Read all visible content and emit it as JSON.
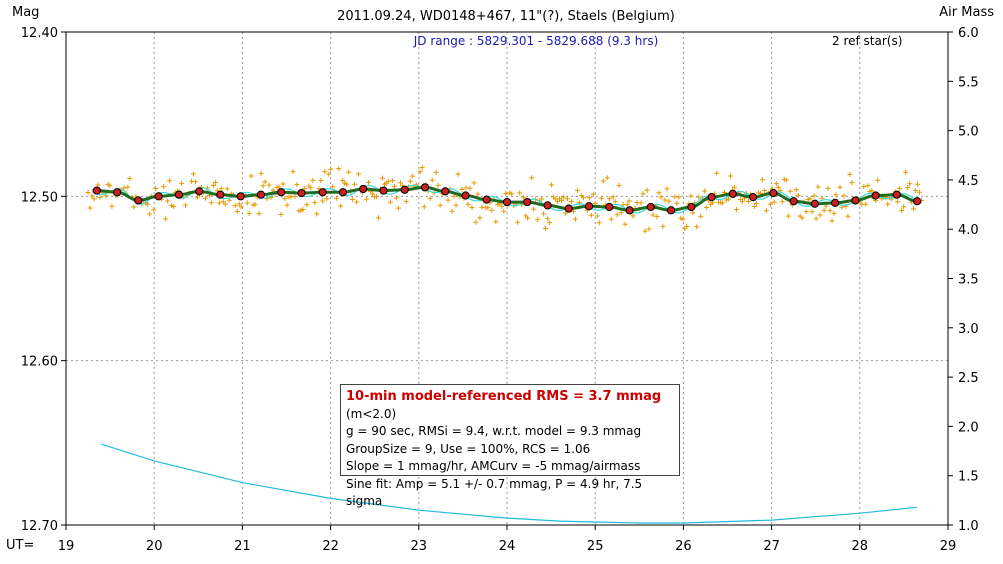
{
  "chart_data": {
    "type": "scatter",
    "title": "2011.09.24, WD0148+467, 11\"(?), Staels (Belgium)",
    "subtitle": "JD range : 5829.301 - 5829.688 (9.3 hrs)",
    "ref_stars": "2 ref star(s)",
    "left_axis_label": "Mag",
    "right_axis_label": "Air Mass",
    "x_axis_label": "UT=",
    "xlim": [
      19,
      29
    ],
    "ylim_mag": [
      12.7,
      12.4
    ],
    "ylim_airmass": [
      1.0,
      6.0
    ],
    "x_ticks": [
      "19",
      "20",
      "21",
      "22",
      "23",
      "24",
      "25",
      "26",
      "27",
      "28",
      "29"
    ],
    "y_ticks_left": [
      "12.40",
      "12.50",
      "12.60",
      "12.70"
    ],
    "y_ticks_right": [
      "6.0",
      "5.5",
      "5.0",
      "4.5",
      "4.0",
      "3.5",
      "3.0",
      "2.5",
      "2.0",
      "1.5",
      "1.0"
    ],
    "grid": true,
    "colors": {
      "raw_points": "#e69a00",
      "binned_points": "#cc1f1f",
      "trend_line": "#1f6b1f",
      "sine_fit": "#33dddd",
      "airmass": "#22bbdd",
      "grid": "#9a9a9a"
    },
    "series": [
      {
        "name": "",
        "kind": "binned",
        "x": [
          19.35,
          19.58,
          19.82,
          20.05,
          20.28,
          20.51,
          20.75,
          20.98,
          21.21,
          21.44,
          21.67,
          21.91,
          22.14,
          22.37,
          22.6,
          22.84,
          23.07,
          23.3,
          23.53,
          23.77,
          24.0,
          24.23,
          24.46,
          24.7,
          24.93,
          25.16,
          25.39,
          25.63,
          25.86,
          26.09,
          26.32,
          26.56,
          26.79,
          27.02,
          27.25,
          27.49,
          27.72,
          27.95,
          28.18,
          28.42,
          28.65
        ],
        "y": [
          12.4965,
          12.4975,
          12.5025,
          12.5,
          12.499,
          12.497,
          12.499,
          12.5,
          12.499,
          12.4975,
          12.498,
          12.4975,
          12.4975,
          12.4955,
          12.4965,
          12.496,
          12.4945,
          12.497,
          12.4995,
          12.502,
          12.5035,
          12.5035,
          12.5055,
          12.5075,
          12.506,
          12.5065,
          12.5085,
          12.5065,
          12.5085,
          12.5065,
          12.5005,
          12.4985,
          12.5005,
          12.498,
          12.503,
          12.5045,
          12.504,
          12.5025,
          12.4995,
          12.499,
          12.503
        ]
      }
    ],
    "raw_point_count": 420,
    "trend_fit": {
      "note": "smooth model fit through binned data"
    },
    "sine_fit": {
      "amplitude_mmag": 5.1,
      "period_hr": 4.9
    },
    "airmass_curve": {
      "x": [
        19.4,
        20.0,
        21.0,
        22.0,
        23.0,
        24.0,
        24.6,
        25.0,
        25.5,
        26.0,
        27.0,
        28.0,
        28.65
      ],
      "y": [
        1.82,
        1.65,
        1.43,
        1.27,
        1.15,
        1.07,
        1.04,
        1.03,
        1.02,
        1.02,
        1.05,
        1.12,
        1.18
      ]
    }
  },
  "info_box": {
    "rms_line": "10-min model-referenced RMS = 3.7 mmag",
    "rms_condition": "(m<2.0)",
    "line2": "g = 90 sec, RMSi = 9.4, w.r.t. model = 9.3 mmag",
    "line3": "GroupSize = 9, Use = 100%, RCS = 1.06",
    "line4": "Slope = 1 mmag/hr, AMCurv = -5 mmag/airmass",
    "line5": "Sine fit: Amp = 5.1 +/- 0.7 mmag, P = 4.9 hr, 7.5  sigma"
  }
}
